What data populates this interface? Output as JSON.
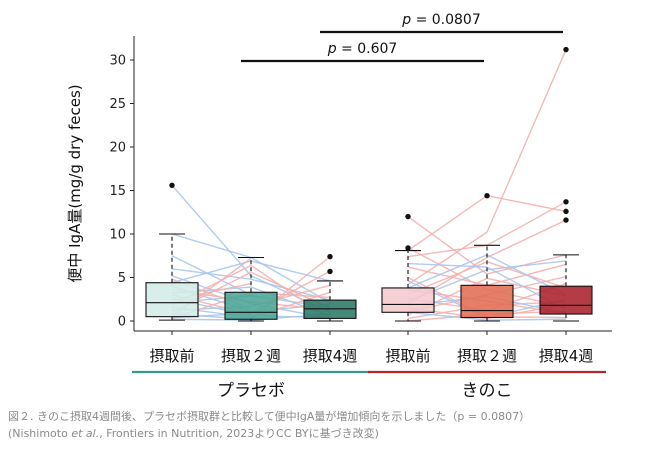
{
  "chart_data": {
    "type": "boxplot",
    "ylabel": "便中 IgA量(mg/g dry feces)",
    "ylim": [
      0,
      32
    ],
    "yticks": [
      0,
      5,
      10,
      15,
      20,
      25,
      30
    ],
    "categories": [
      "摂取前",
      "摂取２週",
      "摂取4週",
      "摂取前",
      "摂取２週",
      "摂取4週"
    ],
    "groups": [
      {
        "name": "プラセボ",
        "color": "#3a9a88",
        "categories": [
          0,
          1,
          2
        ]
      },
      {
        "name": "きのこ",
        "color": "#b5262f",
        "categories": [
          3,
          4,
          5
        ]
      }
    ],
    "boxes": [
      {
        "q1": 0.5,
        "median": 2.1,
        "q3": 4.4,
        "lower": 0.1,
        "upper": 10.0,
        "outliers": [
          15.6
        ],
        "fill": "#d2ece7"
      },
      {
        "q1": 0.2,
        "median": 1.0,
        "q3": 3.3,
        "lower": 0.0,
        "upper": 7.3,
        "outliers": [],
        "fill": "#4aa596"
      },
      {
        "q1": 0.3,
        "median": 1.4,
        "q3": 2.4,
        "lower": 0.0,
        "upper": 4.6,
        "outliers": [
          5.7,
          7.4
        ],
        "fill": "#2b7967"
      },
      {
        "q1": 1.0,
        "median": 1.9,
        "q3": 3.8,
        "lower": 0.0,
        "upper": 8.1,
        "outliers": [
          8.4,
          12.0
        ],
        "fill": "#f6c9cd"
      },
      {
        "q1": 0.4,
        "median": 1.2,
        "q3": 4.1,
        "lower": 0.0,
        "upper": 8.7,
        "outliers": [
          14.4
        ],
        "fill": "#e26d55"
      },
      {
        "q1": 0.8,
        "median": 1.8,
        "q3": 4.0,
        "lower": 0.0,
        "upper": 7.6,
        "outliers": [
          11.6,
          12.6,
          13.7,
          31.2
        ],
        "fill": "#a8212d"
      }
    ],
    "comparisons": [
      {
        "from": 1,
        "to": 4,
        "label": "p = 0.607"
      },
      {
        "from": 2,
        "to": 5,
        "label": "p = 0.0807"
      }
    ],
    "paired_lines": [
      {
        "from": 0,
        "to": 1,
        "color": "#a9c6ec",
        "pairs": [
          [
            15.6,
            5.2
          ],
          [
            10.0,
            7.3
          ],
          [
            7.5,
            3.0
          ],
          [
            6.0,
            4.8
          ],
          [
            5.2,
            2.0
          ],
          [
            4.4,
            6.9
          ],
          [
            4.0,
            1.1
          ],
          [
            3.2,
            3.9
          ],
          [
            2.6,
            0.6
          ],
          [
            2.1,
            2.9
          ],
          [
            1.6,
            0.4
          ],
          [
            1.2,
            1.7
          ],
          [
            0.8,
            0.2
          ],
          [
            0.4,
            0.9
          ],
          [
            0.2,
            0.1
          ]
        ]
      },
      {
        "from": 0,
        "to": 1,
        "color": "#f2b2b0",
        "pairs": [
          [
            0.5,
            7.2
          ],
          [
            1.0,
            5.6
          ],
          [
            1.8,
            6.4
          ],
          [
            2.4,
            4.3
          ],
          [
            3.0,
            0.8
          ],
          [
            3.6,
            2.2
          ],
          [
            4.8,
            1.4
          ],
          [
            0.3,
            3.3
          ]
        ]
      },
      {
        "from": 1,
        "to": 2,
        "color": "#a9c6ec",
        "pairs": [
          [
            7.3,
            2.1
          ],
          [
            6.9,
            4.6
          ],
          [
            5.2,
            1.0
          ],
          [
            4.8,
            2.4
          ],
          [
            3.9,
            0.6
          ],
          [
            2.9,
            1.6
          ],
          [
            2.0,
            0.3
          ],
          [
            1.1,
            1.9
          ],
          [
            0.6,
            0.4
          ],
          [
            0.1,
            0.8
          ]
        ]
      },
      {
        "from": 1,
        "to": 2,
        "color": "#f2b2b0",
        "pairs": [
          [
            0.2,
            7.4
          ],
          [
            0.9,
            5.7
          ],
          [
            1.7,
            4.1
          ],
          [
            0.4,
            3.3
          ],
          [
            3.3,
            2.7
          ],
          [
            2.2,
            1.3
          ],
          [
            5.6,
            1.5
          ],
          [
            6.4,
            0.2
          ]
        ]
      },
      {
        "from": 3,
        "to": 4,
        "color": "#f2b2b0",
        "pairs": [
          [
            12.0,
            5.4
          ],
          [
            8.4,
            3.6
          ],
          [
            8.1,
            14.4
          ],
          [
            7.4,
            8.7
          ],
          [
            6.2,
            4.1
          ],
          [
            5.0,
            0.5
          ],
          [
            4.2,
            10.2
          ],
          [
            3.6,
            2.3
          ],
          [
            3.1,
            6.8
          ],
          [
            2.6,
            1.2
          ],
          [
            2.0,
            7.3
          ],
          [
            1.5,
            0.3
          ],
          [
            1.1,
            3.0
          ],
          [
            0.7,
            4.9
          ],
          [
            0.3,
            1.8
          ],
          [
            0.0,
            0.8
          ]
        ]
      },
      {
        "from": 3,
        "to": 4,
        "color": "#a9c6ec",
        "pairs": [
          [
            3.8,
            7.6
          ],
          [
            2.3,
            5.9
          ],
          [
            1.8,
            2.8
          ],
          [
            6.6,
            6.2
          ],
          [
            4.6,
            0.4
          ],
          [
            1.0,
            0.1
          ]
        ]
      },
      {
        "from": 4,
        "to": 5,
        "color": "#f2b2b0",
        "pairs": [
          [
            14.4,
            12.6
          ],
          [
            10.2,
            31.2
          ],
          [
            8.7,
            13.7
          ],
          [
            7.3,
            11.6
          ],
          [
            6.8,
            3.8
          ],
          [
            5.4,
            7.6
          ],
          [
            4.9,
            2.9
          ],
          [
            4.1,
            6.5
          ],
          [
            3.6,
            1.6
          ],
          [
            3.0,
            5.1
          ],
          [
            2.3,
            0.8
          ],
          [
            1.8,
            2.2
          ],
          [
            1.2,
            4.3
          ],
          [
            0.8,
            1.1
          ],
          [
            0.5,
            0.4
          ],
          [
            0.3,
            1.9
          ]
        ]
      },
      {
        "from": 4,
        "to": 5,
        "color": "#a9c6ec",
        "pairs": [
          [
            7.6,
            3.0
          ],
          [
            6.2,
            1.3
          ],
          [
            5.9,
            6.9
          ],
          [
            2.8,
            0.9
          ],
          [
            0.4,
            2.5
          ],
          [
            0.1,
            0.2
          ]
        ]
      }
    ]
  },
  "caption": {
    "line1": "図２. きのこ摂取4週間後、プラセボ摂取群と比較して便中IgA量が増加傾向を示しました（p = 0.0807）",
    "line2_pre": "(Nishimoto ",
    "line2_etal": "et al.",
    "line2_post": ", Frontiers in Nutrition, 2023よりCC BYに基づき改変)"
  }
}
